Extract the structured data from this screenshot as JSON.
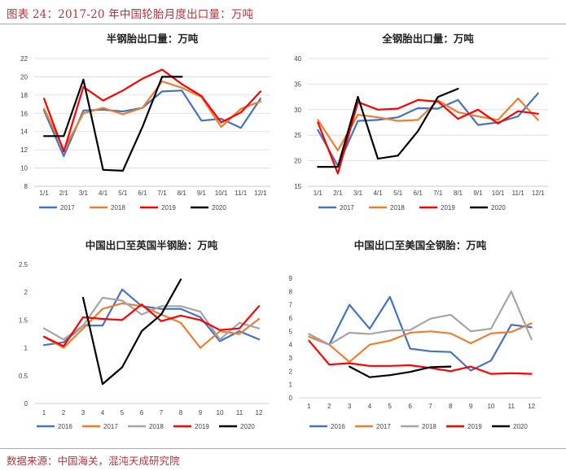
{
  "header": {
    "title": "图表 24：2017-20 年中国轮胎月度出口量：万吨"
  },
  "footer": {
    "source": "数据来源：中国海关，混沌天成研究院"
  },
  "colors": {
    "2016": "#4472c4",
    "2017": "#ed7d31",
    "2018": "#a5a5a5",
    "2019": "#ff0000",
    "2020": "#000000"
  },
  "chart_data": [
    {
      "id": "half-steel",
      "type": "line",
      "title": "半钢胎出口量：万吨",
      "categories": [
        "1/1",
        "2/1",
        "3/1",
        "4/1",
        "5/1",
        "6/1",
        "7/1",
        "8/1",
        "9/1",
        "10/1",
        "11/1",
        "12/1"
      ],
      "ylim": [
        8,
        22
      ],
      "yticks": [
        8,
        10,
        12,
        14,
        16,
        18,
        20,
        22
      ],
      "grid": true,
      "legend_position": "bottom",
      "series": [
        {
          "name": "2017",
          "color": "#4472c4",
          "values": [
            16.3,
            11.3,
            16.3,
            16.4,
            16.2,
            16.6,
            18.4,
            18.5,
            15.2,
            15.4,
            14.4,
            17.6
          ]
        },
        {
          "name": "2018",
          "color": "#ed7d31",
          "values": [
            16.5,
            12.0,
            16.0,
            16.6,
            15.9,
            16.6,
            19.5,
            18.8,
            17.8,
            14.5,
            16.5,
            17.3
          ]
        },
        {
          "name": "2019",
          "color": "#ff0000",
          "values": [
            17.6,
            11.8,
            18.9,
            17.4,
            18.5,
            19.8,
            20.8,
            19.2,
            17.9,
            15.0,
            16.1,
            18.4
          ]
        },
        {
          "name": "2020",
          "color": "#000000",
          "values": [
            13.5,
            13.5,
            19.7,
            9.8,
            9.7,
            14.5,
            20.0,
            20.0,
            null,
            null,
            null,
            null
          ]
        }
      ]
    },
    {
      "id": "all-steel",
      "type": "line",
      "title": "全钢胎出口量：万吨",
      "categories": [
        "1/1",
        "2/1",
        "3/1",
        "4/1",
        "5/1",
        "6/1",
        "7/1",
        "8/1",
        "9/1",
        "10/1",
        "11/1",
        "12/1"
      ],
      "ylim": [
        15,
        40
      ],
      "yticks": [
        15,
        20,
        25,
        30,
        35,
        40
      ],
      "grid": true,
      "legend_position": "bottom",
      "series": [
        {
          "name": "2017",
          "color": "#4472c4",
          "values": [
            26.0,
            19.0,
            27.8,
            28.0,
            28.5,
            30.3,
            30.2,
            31.9,
            27.0,
            27.5,
            28.7,
            33.2
          ]
        },
        {
          "name": "2018",
          "color": "#ed7d31",
          "values": [
            28.0,
            22.0,
            29.0,
            28.5,
            27.8,
            28.0,
            31.8,
            29.5,
            28.7,
            28.0,
            32.2,
            28.0
          ]
        },
        {
          "name": "2019",
          "color": "#ff0000",
          "values": [
            27.5,
            17.5,
            31.5,
            30.0,
            30.2,
            31.9,
            31.6,
            28.2,
            30.0,
            27.3,
            29.7,
            29.2
          ]
        },
        {
          "name": "2020",
          "color": "#000000",
          "values": [
            18.8,
            18.8,
            32.5,
            20.4,
            21.0,
            25.8,
            32.5,
            34.1,
            null,
            null,
            null,
            null
          ]
        }
      ]
    },
    {
      "id": "uk-half-steel",
      "type": "line",
      "title": "中国出口至英国半钢胎：万吨",
      "categories": [
        "1",
        "2",
        "3",
        "4",
        "5",
        "6",
        "7",
        "8",
        "9",
        "10",
        "11",
        "12"
      ],
      "ylim": [
        0,
        2.5
      ],
      "yticks": [
        0,
        0.5,
        1,
        1.5,
        2,
        2.5
      ],
      "ytick_labels": [
        "0",
        "0.5",
        "1",
        "1.5",
        "2",
        "2.5"
      ],
      "grid": false,
      "legend_position": "bottom",
      "series": [
        {
          "name": "2016",
          "color": "#4472c4",
          "values": [
            1.05,
            1.1,
            1.4,
            1.4,
            2.05,
            1.75,
            1.7,
            1.7,
            1.55,
            1.12,
            1.3,
            1.15
          ]
        },
        {
          "name": "2017",
          "color": "#ed7d31",
          "values": [
            1.2,
            1.0,
            1.35,
            1.7,
            1.8,
            1.75,
            1.6,
            1.45,
            1.0,
            1.3,
            1.25,
            1.52
          ]
        },
        {
          "name": "2018",
          "color": "#a5a5a5",
          "values": [
            1.35,
            1.15,
            1.4,
            1.9,
            1.85,
            1.6,
            1.75,
            1.75,
            1.65,
            1.15,
            1.45,
            1.35
          ]
        },
        {
          "name": "2019",
          "color": "#ff0000",
          "values": [
            1.2,
            1.03,
            1.55,
            1.52,
            1.5,
            1.78,
            1.48,
            1.58,
            1.5,
            1.32,
            1.35,
            1.75
          ]
        },
        {
          "name": "2020",
          "color": "#000000",
          "values": [
            null,
            null,
            1.9,
            0.35,
            0.65,
            1.3,
            1.6,
            2.23,
            null,
            null,
            null,
            null
          ]
        }
      ]
    },
    {
      "id": "us-all-steel",
      "type": "line",
      "title": "中国出口至美国全钢胎：万吨",
      "categories": [
        "1",
        "2",
        "3",
        "4",
        "5",
        "6",
        "7",
        "8",
        "9",
        "10",
        "11",
        "12"
      ],
      "ylim": [
        0,
        9
      ],
      "yticks": [
        0,
        1,
        2,
        3,
        4,
        5,
        6,
        7,
        8,
        9
      ],
      "grid": false,
      "legend_position": "bottom",
      "series": [
        {
          "name": "2016",
          "color": "#4472c4",
          "values": [
            4.8,
            4.0,
            7.0,
            5.2,
            7.6,
            3.7,
            3.5,
            3.45,
            2.05,
            2.8,
            5.5,
            5.3
          ]
        },
        {
          "name": "2017",
          "color": "#ed7d31",
          "values": [
            4.6,
            4.0,
            2.7,
            4.0,
            4.3,
            4.9,
            5.0,
            4.85,
            4.1,
            4.85,
            4.95,
            5.6
          ]
        },
        {
          "name": "2018",
          "color": "#a5a5a5",
          "values": [
            4.8,
            4.0,
            4.9,
            4.8,
            5.05,
            5.1,
            5.95,
            6.25,
            5.0,
            5.2,
            8.0,
            4.4
          ]
        },
        {
          "name": "2019",
          "color": "#ff0000",
          "values": [
            4.3,
            2.5,
            2.6,
            2.4,
            2.4,
            2.45,
            2.25,
            2.0,
            2.35,
            1.8,
            1.85,
            1.8
          ]
        },
        {
          "name": "2020",
          "color": "#000000",
          "values": [
            null,
            null,
            2.35,
            1.55,
            1.7,
            1.95,
            2.3,
            2.35,
            null,
            null,
            null,
            null
          ]
        }
      ]
    }
  ]
}
